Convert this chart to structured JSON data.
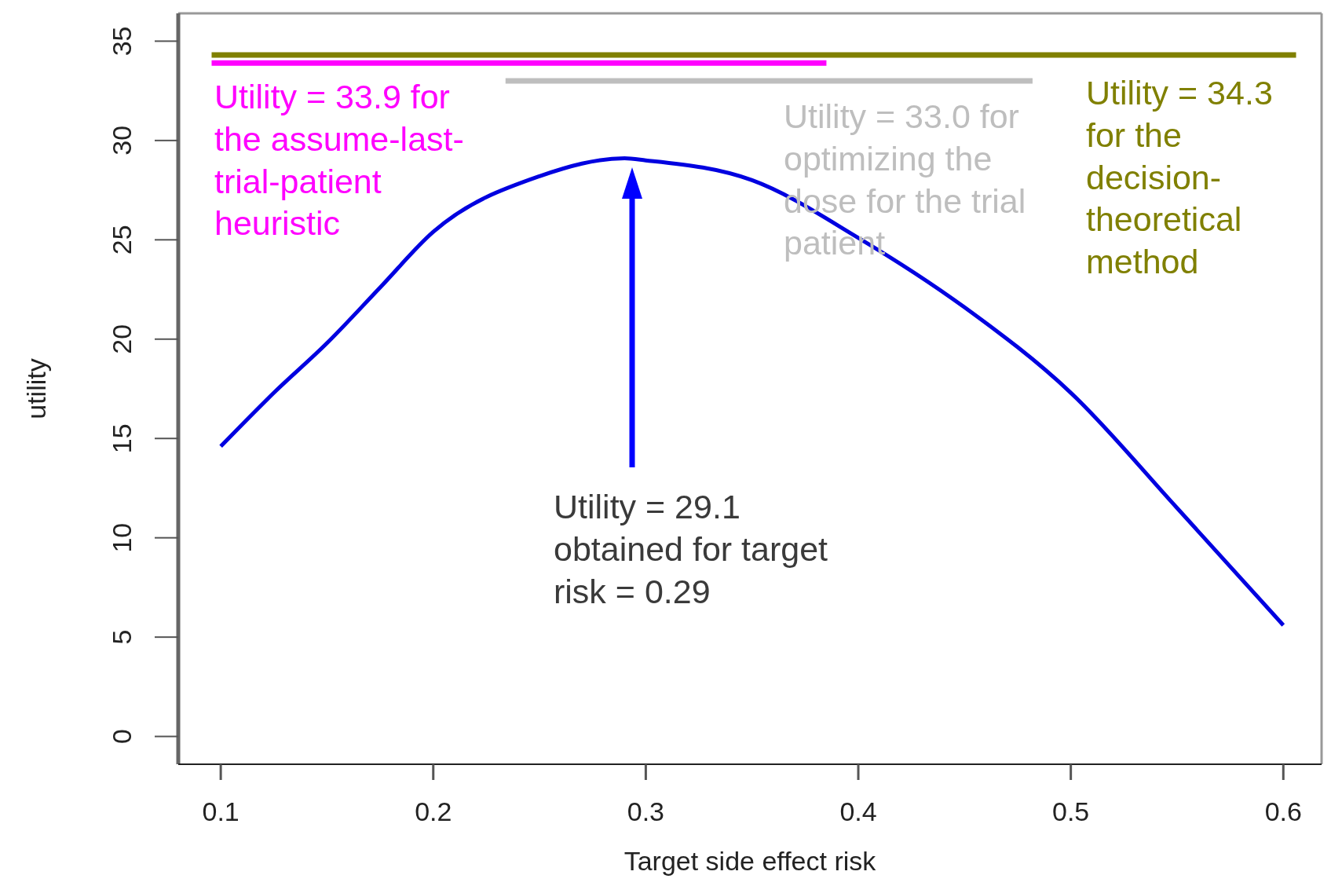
{
  "chart_data": {
    "type": "line",
    "xlabel": "Target side effect risk",
    "ylabel": "utility",
    "xlim": [
      0.08,
      0.618
    ],
    "ylim": [
      -1.4,
      36.4
    ],
    "xticks": [
      0.1,
      0.2,
      0.3,
      0.4,
      0.5,
      0.6
    ],
    "yticks": [
      0,
      5,
      10,
      15,
      20,
      25,
      30,
      35
    ],
    "grid": false,
    "marker": "none",
    "line_style": "solid",
    "series": [
      {
        "color": "#0000e0",
        "x": [
          0.1,
          0.125,
          0.15,
          0.175,
          0.2,
          0.25,
          0.29,
          0.3,
          0.35,
          0.4,
          0.45,
          0.5,
          0.55,
          0.6
        ],
        "values": [
          14.6,
          17.3,
          19.8,
          22.6,
          25.4,
          28.2,
          29.1,
          29.0,
          28.0,
          25.1,
          21.6,
          17.3,
          11.5,
          5.6
        ]
      },
      {
        "name": "Utility = 34.3 for the decision-theoretical method",
        "color": "#808000",
        "x": [
          0.0957,
          0.606
        ],
        "values": [
          34.3,
          34.3
        ]
      },
      {
        "name": "Utility = 33.9 for the assume-last-trial-patient heuristic",
        "color": "#ff00ff",
        "x": [
          0.0957,
          0.385
        ],
        "values": [
          33.9,
          33.9
        ]
      },
      {
        "name": "Utility = 33.0 for optimizing the dose for the trial patient",
        "color": "#bebebe",
        "x": [
          0.234,
          0.482
        ],
        "values": [
          33.0,
          33.0
        ]
      }
    ],
    "annotations": [
      "Utility = 29.1 obtained for target risk = 0.29"
    ]
  }
}
